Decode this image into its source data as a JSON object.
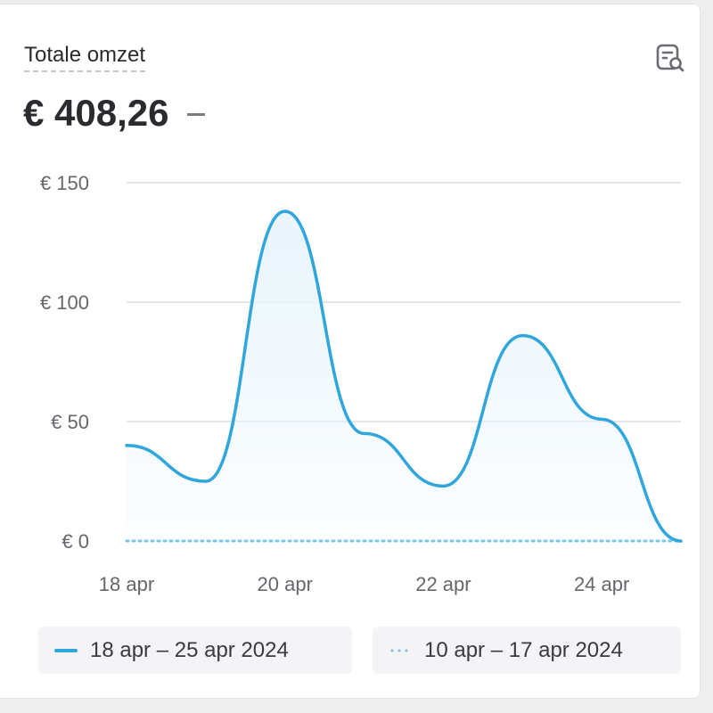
{
  "card": {
    "title": "Totale omzet",
    "total": "€ 408,26",
    "comparison": "–"
  },
  "icons": {
    "report": "report-search-icon"
  },
  "colors": {
    "primary_line": "#2fa6dc",
    "primary_fill": "#e9f5fc",
    "comparison_line": "#7cc7e8",
    "grid": "#e6e6ea"
  },
  "legend": [
    {
      "label": "18 apr – 25 apr 2024",
      "style": "solid"
    },
    {
      "label": "10 apr – 17 apr 2024",
      "style": "dotted"
    }
  ],
  "chart_data": {
    "type": "area",
    "x": [
      "18 apr",
      "19 apr",
      "20 apr",
      "21 apr",
      "22 apr",
      "23 apr",
      "24 apr",
      "25 apr"
    ],
    "xticks": [
      "18 apr",
      "20 apr",
      "22 apr",
      "24 apr"
    ],
    "yticks": [
      "€ 0",
      "€ 50",
      "€ 100",
      "€ 150"
    ],
    "ytick_values": [
      0,
      50,
      100,
      150
    ],
    "ylim": [
      0,
      150
    ],
    "grid": true,
    "series": [
      {
        "name": "18 apr – 25 apr 2024",
        "style": "solid",
        "values": [
          40,
          25,
          138,
          45,
          23,
          86,
          51,
          0
        ]
      },
      {
        "name": "10 apr – 17 apr 2024",
        "style": "dotted",
        "values": [
          0,
          0,
          0,
          0,
          0,
          0,
          0,
          0
        ]
      }
    ]
  }
}
